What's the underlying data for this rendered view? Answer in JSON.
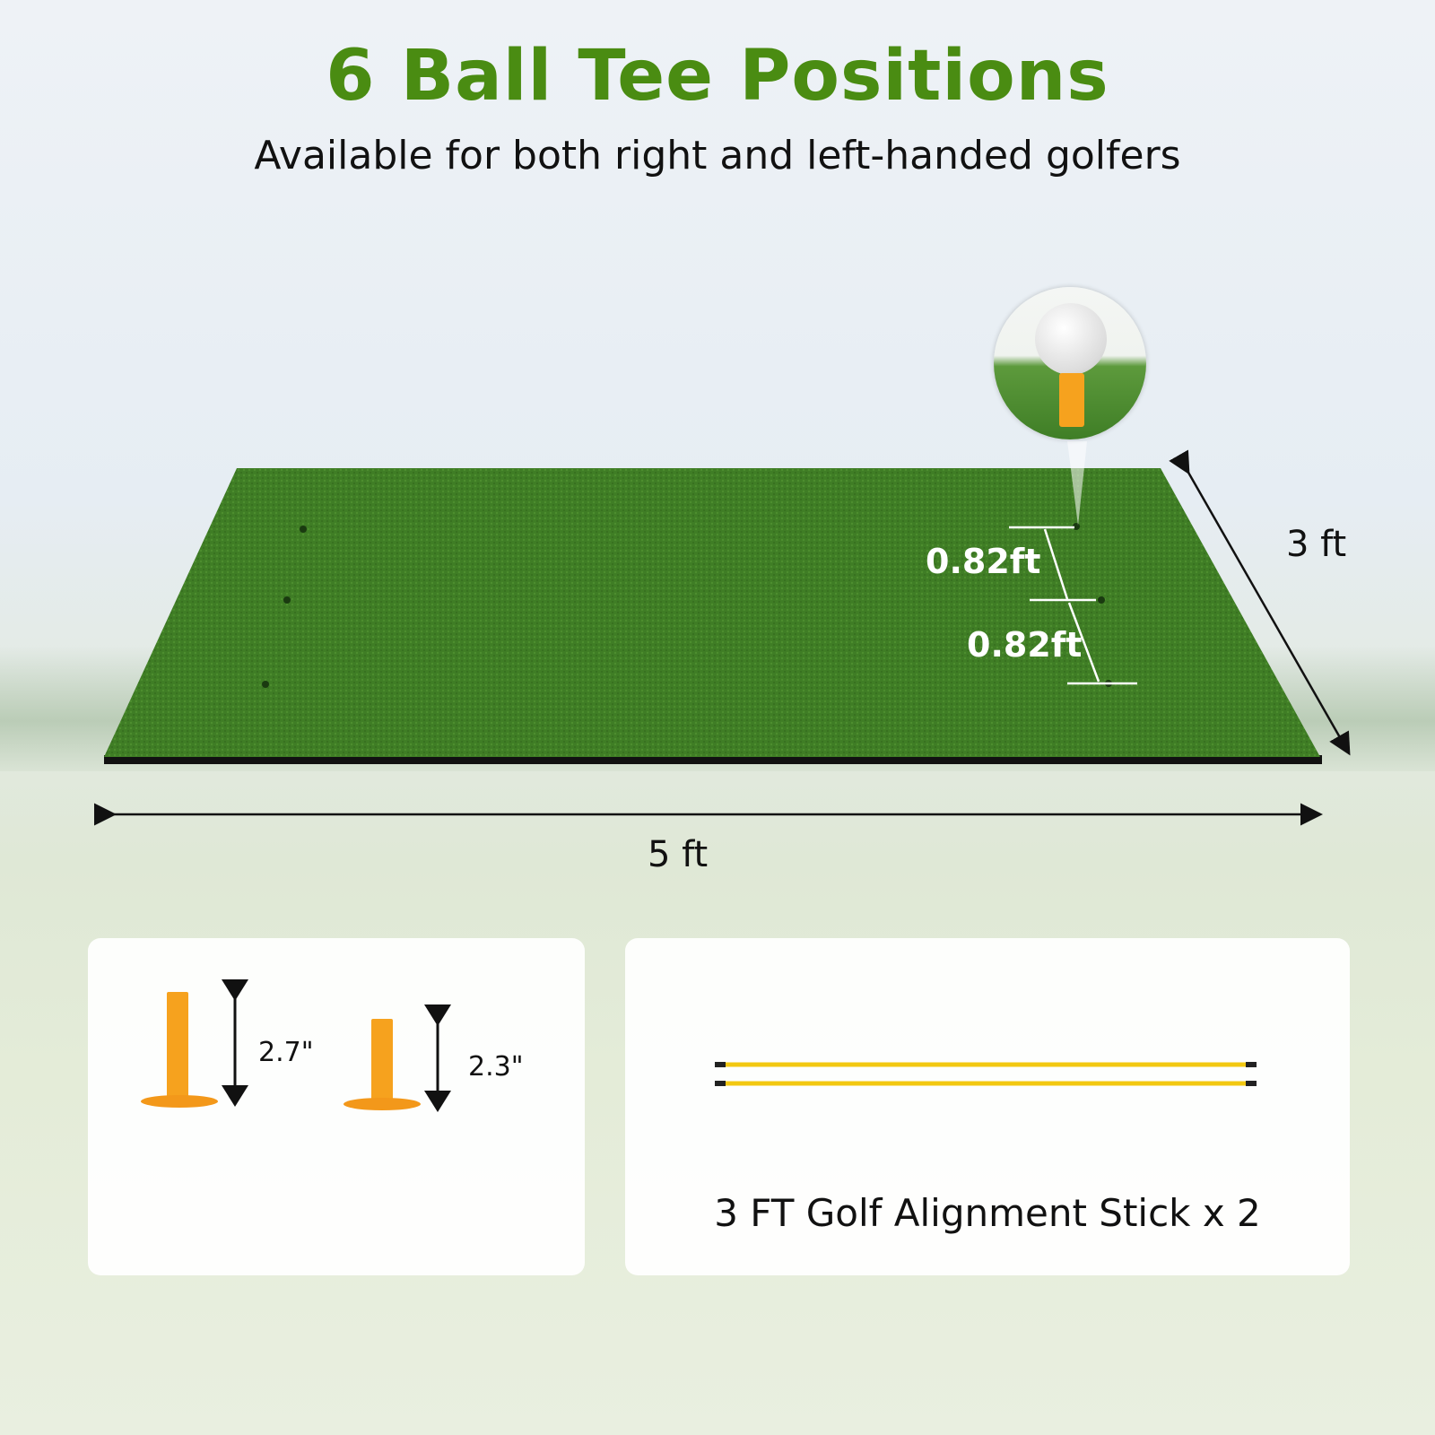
{
  "header": {
    "title": "6 Ball Tee Positions",
    "subtitle": "Available for both right and left-handed golfers"
  },
  "mat": {
    "width_label": "5 ft",
    "depth_label": "3 ft",
    "spacing_labels": [
      "0.82ft",
      "0.82ft"
    ],
    "color": "#3f7d25",
    "backing_color": "#111111"
  },
  "tees": [
    {
      "height_label": "2.7\""
    },
    {
      "height_label": "2.3\""
    }
  ],
  "tee_color": "#f6a21e",
  "sticks": {
    "caption": "3 FT Golf Alignment Stick x 2",
    "color": "#f2c811"
  },
  "accent": "#4a8c12"
}
